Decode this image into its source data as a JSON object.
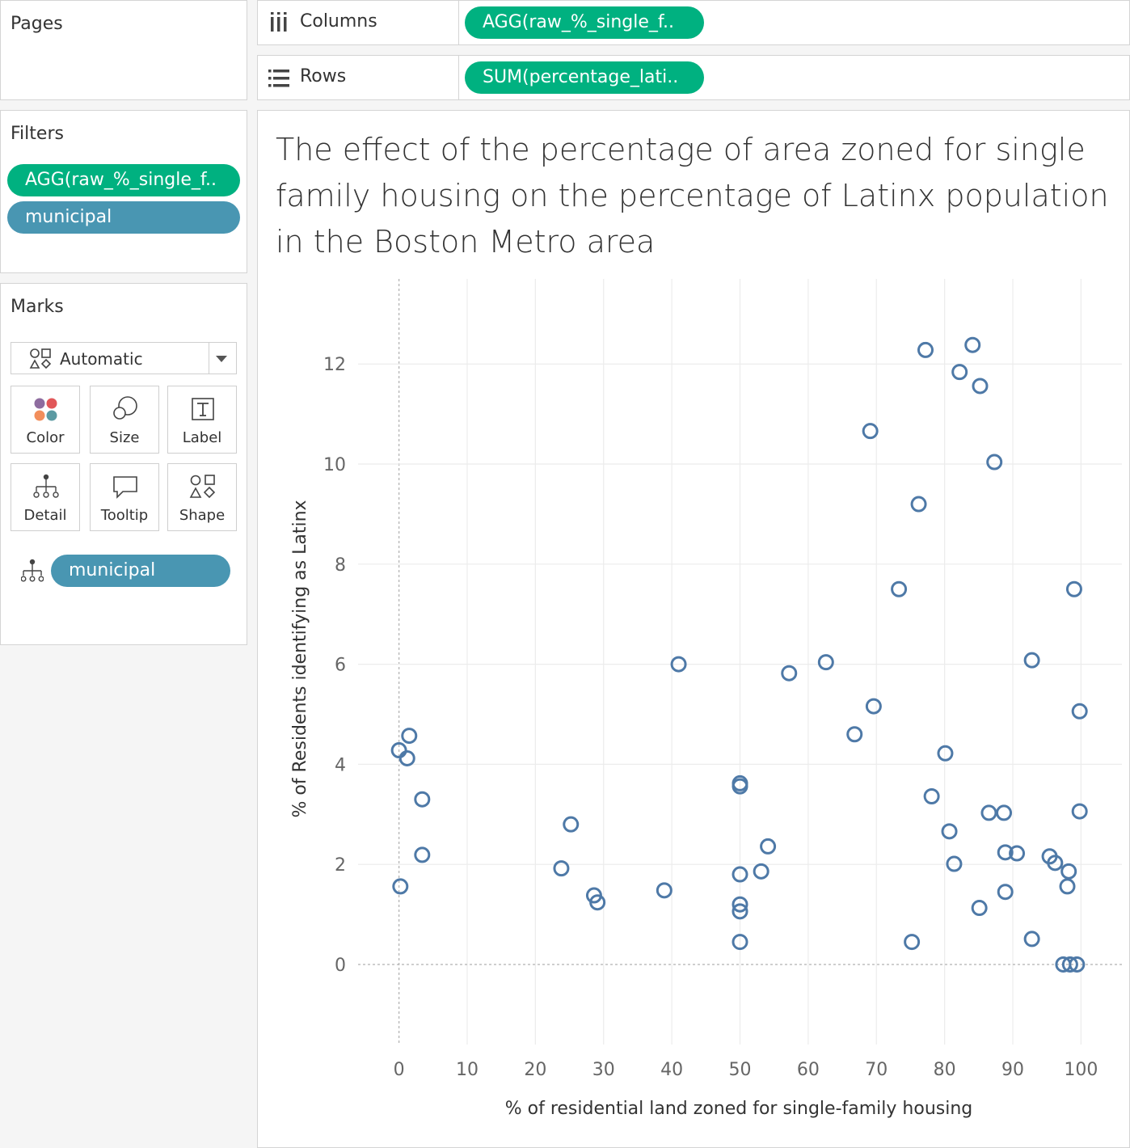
{
  "pages": {
    "title": "Pages"
  },
  "filters": {
    "title": "Filters",
    "pills": [
      "AGG(raw_%_single_f..",
      "municipal"
    ]
  },
  "marks": {
    "title": "Marks",
    "type": "Automatic",
    "buttons": {
      "color": "Color",
      "size": "Size",
      "label": "Label",
      "detail": "Detail",
      "tooltip": "Tooltip",
      "shape": "Shape"
    },
    "detail_pill": "municipal"
  },
  "shelves": {
    "columns_label": "Columns",
    "columns_pill": "AGG(raw_%_single_f..",
    "rows_label": "Rows",
    "rows_pill": "SUM(percentage_lati.."
  },
  "colors": {
    "green_pill": "#00b180",
    "blue_pill": "#4996b2",
    "mark": "#4e79a7"
  },
  "chart_data": {
    "type": "scatter",
    "title": "The effect of the percentage of area zoned for single family housing on the percentage of Latinx population in the Boston Metro area",
    "xlabel": "% of residential land zoned for single-family housing",
    "ylabel": "% of Residents identifying as Latinx",
    "xlim": [
      -6,
      106
    ],
    "ylim": [
      -1.6,
      13.7
    ],
    "xticks": [
      0,
      10,
      20,
      30,
      40,
      50,
      60,
      70,
      80,
      90,
      100
    ],
    "yticks": [
      0,
      2,
      4,
      6,
      8,
      10,
      12
    ],
    "grid": true,
    "marker": "hollow circle",
    "points": [
      [
        0,
        4.28
      ],
      [
        1.5,
        4.57
      ],
      [
        1.2,
        4.12
      ],
      [
        3.4,
        3.3
      ],
      [
        3.4,
        2.19
      ],
      [
        0.2,
        1.56
      ],
      [
        25.2,
        2.8
      ],
      [
        23.8,
        1.92
      ],
      [
        28.6,
        1.38
      ],
      [
        29.1,
        1.24
      ],
      [
        38.9,
        1.48
      ],
      [
        41,
        6.0
      ],
      [
        50,
        3.62
      ],
      [
        50,
        3.56
      ],
      [
        50,
        1.8
      ],
      [
        50,
        1.2
      ],
      [
        50,
        1.06
      ],
      [
        50,
        0.45
      ],
      [
        53.1,
        1.86
      ],
      [
        54.1,
        2.36
      ],
      [
        57.2,
        5.82
      ],
      [
        62.6,
        6.04
      ],
      [
        66.8,
        4.6
      ],
      [
        69.1,
        10.66
      ],
      [
        69.6,
        5.16
      ],
      [
        73.3,
        7.5
      ],
      [
        75.2,
        0.45
      ],
      [
        76.2,
        9.2
      ],
      [
        77.2,
        12.28
      ],
      [
        78.1,
        3.36
      ],
      [
        80.1,
        4.22
      ],
      [
        80.7,
        2.66
      ],
      [
        81.4,
        2.01
      ],
      [
        82.2,
        11.84
      ],
      [
        84.1,
        12.38
      ],
      [
        85.2,
        11.56
      ],
      [
        85.1,
        1.13
      ],
      [
        86.5,
        3.03
      ],
      [
        87.3,
        10.04
      ],
      [
        88.7,
        3.03
      ],
      [
        88.9,
        2.24
      ],
      [
        88.9,
        1.45
      ],
      [
        90.6,
        2.22
      ],
      [
        92.8,
        6.08
      ],
      [
        92.8,
        0.51
      ],
      [
        95.4,
        2.16
      ],
      [
        96.2,
        2.03
      ],
      [
        97.4,
        0.0
      ],
      [
        98.2,
        1.86
      ],
      [
        98,
        1.56
      ],
      [
        98.4,
        0.0
      ],
      [
        99,
        7.5
      ],
      [
        99.4,
        0.0
      ],
      [
        99.8,
        5.06
      ],
      [
        99.8,
        3.06
      ]
    ]
  }
}
